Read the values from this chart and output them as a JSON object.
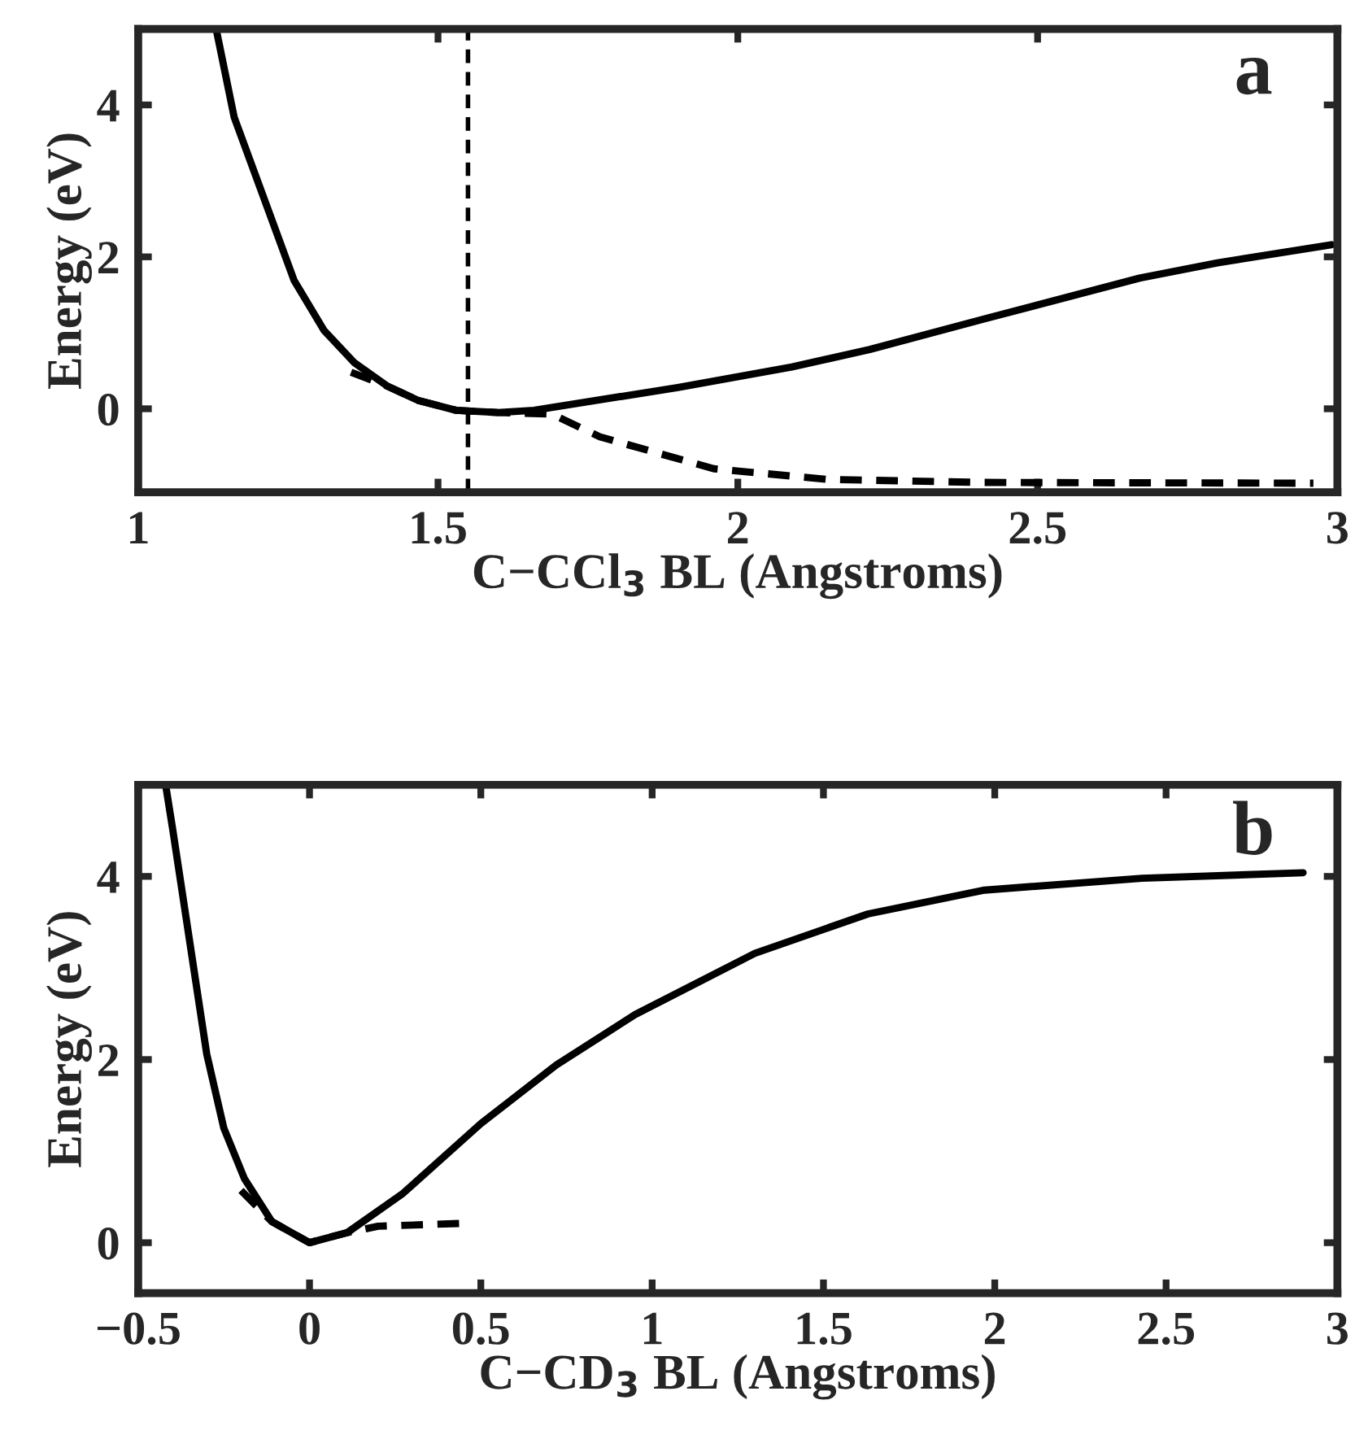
{
  "chart_data": [
    {
      "type": "line",
      "xlabel": "C−CCl$_{3}$ BL (Angstroms)",
      "ylabel": "Energy (eV)",
      "annotations": [
        "a"
      ],
      "xlim": [
        1,
        3
      ],
      "ylim": [
        -1.1,
        5
      ],
      "xticks": [
        1,
        1.5,
        2,
        2.5,
        3
      ],
      "yticks": [
        0,
        2,
        4
      ],
      "grid": false,
      "legend": false,
      "ref_lines": [
        {
          "axis": "x",
          "value": 1.55,
          "color": "#000000",
          "line_style": "dashed"
        }
      ],
      "series": [
        {
          "color": "#000000",
          "line_style": "solid",
          "x": [
            1.13,
            1.16,
            1.26,
            1.31,
            1.36,
            1.415,
            1.467,
            1.53,
            1.6,
            1.66,
            1.9,
            2.09,
            2.22,
            2.41,
            2.67,
            2.8,
            2.99
          ],
          "values": [
            5,
            3.84,
            1.69,
            1.03,
            0.61,
            0.3,
            0.11,
            -0.02,
            -0.05,
            -0.02,
            0.28,
            0.55,
            0.78,
            1.18,
            1.72,
            1.92,
            2.16
          ]
        },
        {
          "color": "#000000",
          "line_style": "dashed",
          "x": [
            1.355,
            1.415,
            1.467,
            1.53,
            1.6,
            1.69,
            1.77,
            1.96,
            2.15,
            2.41,
            2.96
          ],
          "values": [
            0.48,
            0.3,
            0.11,
            -0.02,
            -0.05,
            -0.07,
            -0.37,
            -0.79,
            -0.93,
            -0.97,
            -0.98
          ]
        }
      ]
    },
    {
      "type": "line",
      "xlabel": "C−CD$_{3}$ BL (Angstroms)",
      "ylabel": "Energy (eV)",
      "annotations": [
        "b"
      ],
      "xlim": [
        -0.5,
        3
      ],
      "ylim": [
        -0.55,
        5
      ],
      "xticks": [
        {
          "value": -0.5,
          "label": "−0.5"
        },
        0,
        0.5,
        1,
        1.5,
        2,
        2.5,
        3
      ],
      "yticks": [
        0,
        2,
        4
      ],
      "grid": false,
      "legend": false,
      "series": [
        {
          "color": "#000000",
          "line_style": "solid",
          "x": [
            -0.42,
            -0.4,
            -0.3,
            -0.25,
            -0.19,
            -0.11,
            0.0,
            0.11,
            0.27,
            0.5,
            0.72,
            0.95,
            1.3,
            1.63,
            1.97,
            2.43,
            2.9
          ],
          "values": [
            5,
            4.53,
            2.06,
            1.25,
            0.7,
            0.23,
            0,
            0.11,
            0.53,
            1.3,
            1.94,
            2.49,
            3.16,
            3.59,
            3.85,
            3.98,
            4.04
          ]
        },
        {
          "color": "#000000",
          "line_style": "dashed",
          "x": [
            -0.2,
            -0.11,
            0.0,
            0.11,
            0.2,
            0.44
          ],
          "values": [
            0.57,
            0.23,
            0,
            0.11,
            0.18,
            0.21
          ]
        }
      ]
    }
  ]
}
